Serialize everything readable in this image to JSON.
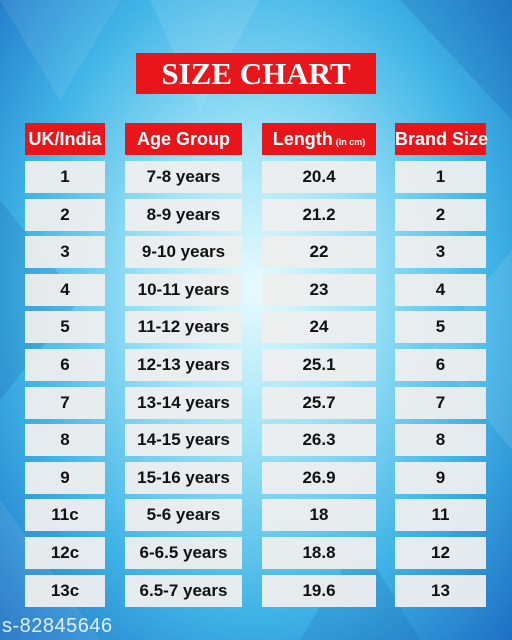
{
  "header": {
    "title": "SIZE CHART"
  },
  "table": {
    "headers": [
      {
        "text": "UK/India"
      },
      {
        "text": "Age Group"
      },
      {
        "text": "Length",
        "unit": "(in cm)"
      },
      {
        "text": "Brand Size"
      }
    ],
    "rows": [
      [
        "1",
        "7-8 years",
        "20.4",
        "1"
      ],
      [
        "2",
        "8-9 years",
        "21.2",
        "2"
      ],
      [
        "3",
        "9-10 years",
        "22",
        "3"
      ],
      [
        "4",
        "10-11 years",
        "23",
        "4"
      ],
      [
        "5",
        "11-12 years",
        "24",
        "5"
      ],
      [
        "6",
        "12-13 years",
        "25.1",
        "6"
      ],
      [
        "7",
        "13-14 years",
        "25.7",
        "7"
      ],
      [
        "8",
        "14-15 years",
        "26.3",
        "8"
      ],
      [
        "9",
        "15-16 years",
        "26.9",
        "9"
      ],
      [
        "11c",
        "5-6 years",
        "18",
        "11"
      ],
      [
        "12c",
        "6-6.5 years",
        "18.8",
        "12"
      ],
      [
        "13c",
        "6.5-7 years",
        "19.6",
        "13"
      ]
    ]
  },
  "watermark": "s-82845646"
}
